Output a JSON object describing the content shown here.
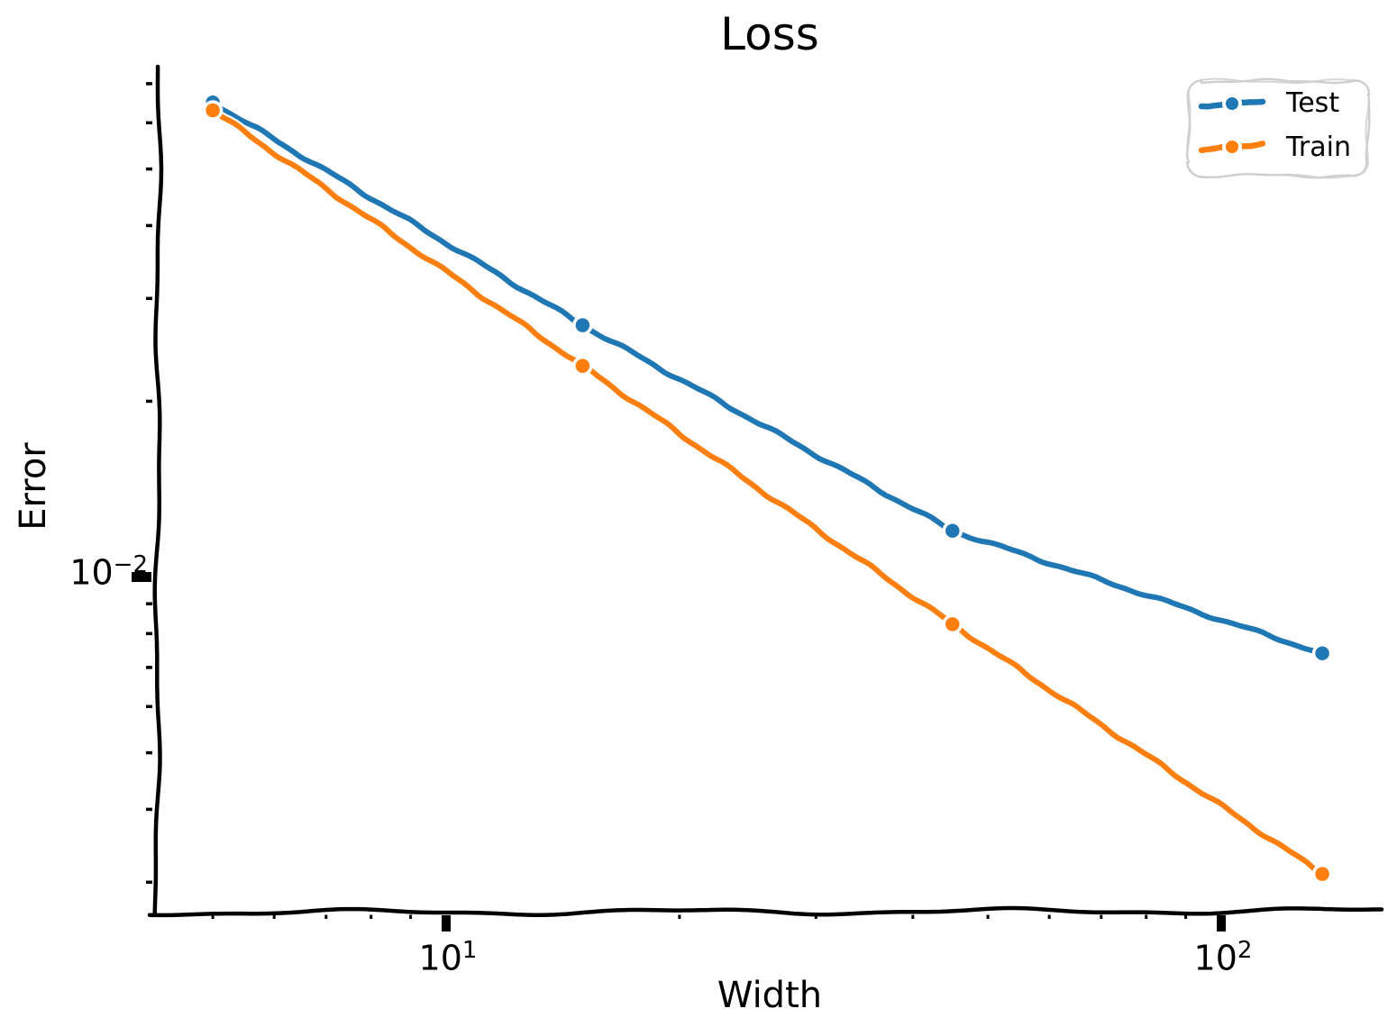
{
  "figure": {
    "title": "Loss",
    "xlabel": "Width",
    "ylabel": "Error",
    "x_tick_labels": [
      {
        "base": "10",
        "exp": "1"
      },
      {
        "base": "10",
        "exp": "2"
      }
    ],
    "y_tick_labels": [
      {
        "base": "10",
        "exp": "−2"
      }
    ],
    "legend": {
      "items": [
        {
          "label": "Test"
        },
        {
          "label": "Train"
        }
      ]
    }
  },
  "chart_data": {
    "type": "line",
    "style": "xkcd-sketch",
    "title": "Loss",
    "xlabel": "Width",
    "ylabel": "Error",
    "xscale": "log",
    "yscale": "log",
    "x": [
      5,
      15,
      45,
      135
    ],
    "series": [
      {
        "name": "Test",
        "color": "#1f77b4",
        "values": [
          0.065,
          0.027,
          0.012,
          0.0074
        ]
      },
      {
        "name": "Train",
        "color": "#ff7f0e",
        "values": [
          0.063,
          0.023,
          0.0083,
          0.0031
        ]
      }
    ],
    "x_ticks": [
      10,
      100
    ],
    "y_ticks": [
      0.01
    ],
    "xlim": [
      4.2,
      161
    ],
    "ylim": [
      0.0026,
      0.075
    ],
    "grid": false,
    "legend_position": "upper right",
    "marker": "o",
    "axis_color": "#000000",
    "legend_border_color": "#cfcfcf"
  }
}
